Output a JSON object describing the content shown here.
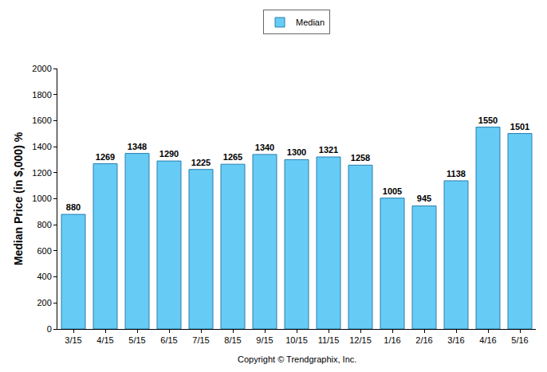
{
  "chart_data": {
    "type": "bar",
    "y_label": "Median Price (in $,000) %",
    "categories": [
      "3/15",
      "4/15",
      "5/15",
      "6/15",
      "7/15",
      "8/15",
      "9/15",
      "10/15",
      "11/15",
      "12/15",
      "1/16",
      "2/16",
      "3/16",
      "4/16",
      "5/16"
    ],
    "series": [
      {
        "name": "Median",
        "color": "#66ccf5",
        "values": [
          880,
          1269,
          1348,
          1290,
          1225,
          1265,
          1340,
          1300,
          1321,
          1258,
          1005,
          945,
          1138,
          1550,
          1501
        ]
      }
    ],
    "ylim": [
      0,
      2000
    ],
    "yticks": [
      0,
      200,
      400,
      600,
      800,
      1000,
      1200,
      1400,
      1600,
      1800,
      2000
    ],
    "grid": false,
    "legend": "top",
    "data_labels": true,
    "annotations": [
      "Copyright © Trendgraphix, Inc."
    ]
  }
}
